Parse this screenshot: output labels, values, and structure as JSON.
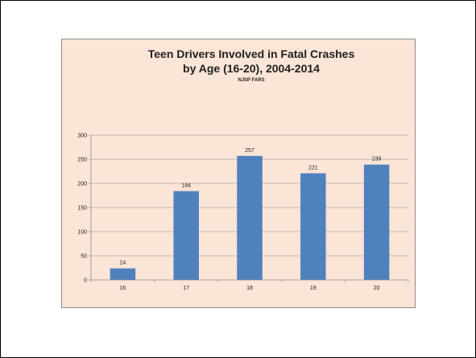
{
  "chart_data": {
    "type": "bar",
    "title_lines": [
      "Teen Drivers Involved in Fatal Crashes",
      "by Age (16-20), 2004-2014"
    ],
    "subtitle": "NJSP FARS",
    "xlabel": "",
    "ylabel": "",
    "categories": [
      "16",
      "17",
      "18",
      "19",
      "20"
    ],
    "values": [
      24,
      184,
      257,
      221,
      239
    ],
    "data_labels": [
      "24",
      "184",
      "257",
      "221",
      "239"
    ],
    "ylim": [
      0,
      300
    ],
    "yticks": [
      0,
      50,
      100,
      150,
      200,
      250,
      300
    ],
    "grid": true,
    "legend": "none",
    "bar_color": "#4f81bd",
    "background_color": "#fbe5d6"
  }
}
